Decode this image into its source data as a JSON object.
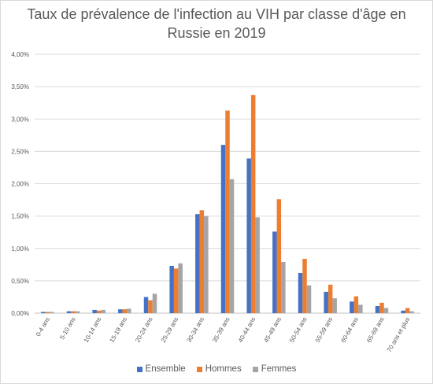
{
  "chart_data": {
    "type": "bar",
    "title": "Taux de prévalence de l'infection au VIH par classe d'âge en Russie en 2019",
    "title_lines": [
      "Taux de prévalence de l'infection au VIH par classe d'âge en",
      "Russie en 2019"
    ],
    "categories": [
      "0-4 ans",
      "5-10 ans",
      "10-14 ans",
      "15-19 ans",
      "20-24 ans",
      "25-29 ans",
      "30-34 ans",
      "35-39 ans",
      "40-44 ans",
      "45-49 ans",
      "50-54 ans",
      "55-59 ans",
      "60-64 ans",
      "65-69 ans",
      "70 ans et plus"
    ],
    "series": [
      {
        "name": "Ensemble",
        "color": "#4472C4",
        "values": [
          0.02,
          0.03,
          0.05,
          0.06,
          0.25,
          0.73,
          1.53,
          2.6,
          2.39,
          1.26,
          0.62,
          0.33,
          0.18,
          0.11,
          0.04
        ]
      },
      {
        "name": "Hommes",
        "color": "#ED7D31",
        "values": [
          0.02,
          0.03,
          0.04,
          0.06,
          0.2,
          0.69,
          1.59,
          3.13,
          3.37,
          1.76,
          0.84,
          0.44,
          0.26,
          0.16,
          0.08
        ]
      },
      {
        "name": "Femmes",
        "color": "#A5A5A5",
        "values": [
          0.02,
          0.03,
          0.05,
          0.07,
          0.3,
          0.77,
          1.5,
          2.07,
          1.48,
          0.79,
          0.43,
          0.23,
          0.13,
          0.08,
          0.03
        ]
      }
    ],
    "ylim": [
      0,
      4.0
    ],
    "yticks": [
      0,
      0.5,
      1.0,
      1.5,
      2.0,
      2.5,
      3.0,
      3.5,
      4.0
    ],
    "ytick_labels": [
      "0,00%",
      "0,50%",
      "1,00%",
      "1,50%",
      "2,00%",
      "2,50%",
      "3,00%",
      "3,50%",
      "4,00%"
    ],
    "grid": true,
    "legend_position": "bottom"
  }
}
